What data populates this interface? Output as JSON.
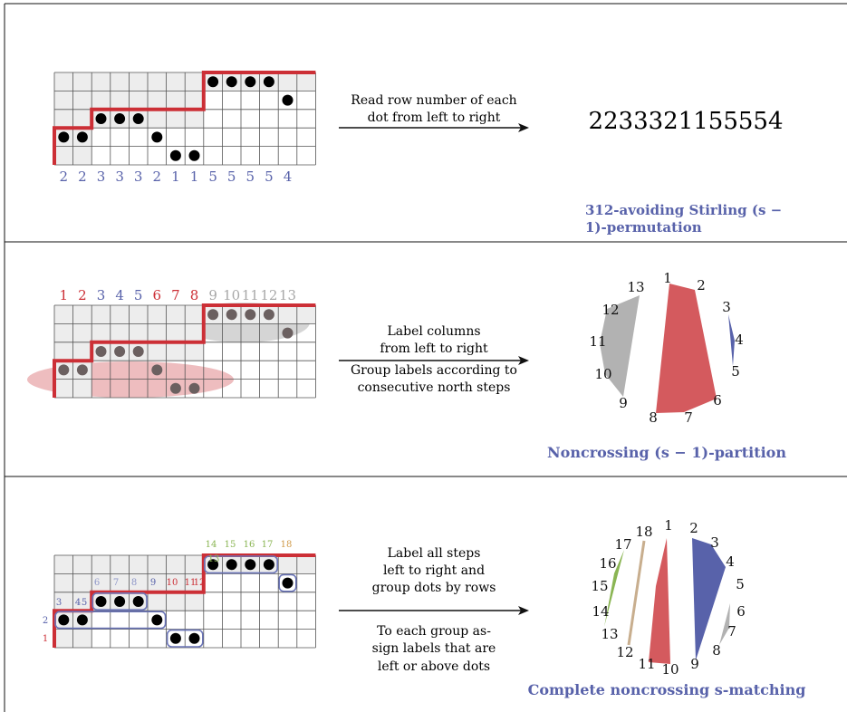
{
  "colors": {
    "path": "#cc2f36",
    "blue": "#5862aa",
    "red": "#d45a5e",
    "gray": "#b2b2b2",
    "green": "#8ab553",
    "tan": "#c8ae8e",
    "shade": "#ededed",
    "text": "#111111"
  },
  "panel1": {
    "arrow_text": [
      "Read row number of each",
      "dot from left to right"
    ],
    "permutation": "2233321155554",
    "row_numbers": [
      "2",
      "2",
      "3",
      "3",
      "3",
      "2",
      "1",
      "1",
      "5",
      "5",
      "5",
      "5",
      "4"
    ],
    "caption": [
      "312-avoiding Stirling (s −",
      "1)-permutation"
    ]
  },
  "panel2": {
    "column_labels": [
      "1",
      "2",
      "3",
      "4",
      "5",
      "6",
      "7",
      "8",
      "9",
      "10",
      "11",
      "12",
      "13"
    ],
    "arrow_text": [
      "Label columns",
      "from left to right",
      "Group labels according to",
      "consecutive north steps"
    ],
    "circle_labels": [
      "1",
      "2",
      "3",
      "4",
      "5",
      "6",
      "7",
      "8",
      "9",
      "10",
      "11",
      "12",
      "13"
    ],
    "caption": "Noncrossing (s − 1)-partition"
  },
  "panel3": {
    "step_labels": [
      "1",
      "2",
      "3",
      "4",
      "5",
      "6",
      "7",
      "8",
      "9",
      "10",
      "11",
      "12",
      "13",
      "14",
      "15",
      "16",
      "17",
      "18"
    ],
    "arrow_text_top": [
      "Label all steps",
      "left to right and",
      "group dots by rows"
    ],
    "arrow_text_bottom": [
      "To each group as-",
      "sign labels that are",
      "left or above dots"
    ],
    "circle_labels": [
      "1",
      "2",
      "3",
      "4",
      "5",
      "6",
      "7",
      "8",
      "9",
      "10",
      "11",
      "12",
      "13",
      "14",
      "15",
      "16",
      "17",
      "18"
    ],
    "caption": "Complete noncrossing s-matching"
  }
}
